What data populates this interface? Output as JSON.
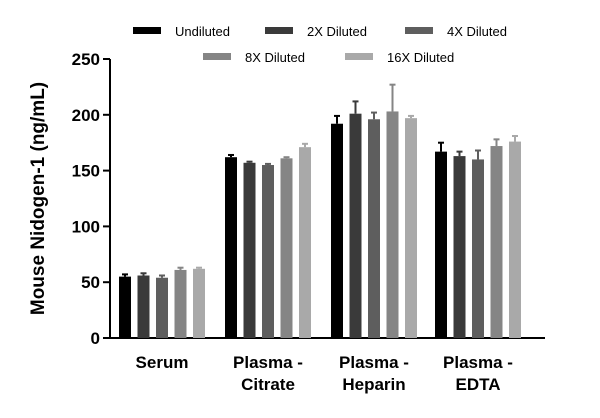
{
  "chart_data": {
    "type": "bar",
    "title": "",
    "xlabel": "",
    "ylabel": "Mouse Nidogen-1 (ng/mL)",
    "ylim": [
      0,
      250
    ],
    "yticks": [
      0,
      50,
      100,
      150,
      200,
      250
    ],
    "grid": false,
    "legend_position": "top",
    "categories": [
      [
        "Serum"
      ],
      [
        "Plasma -",
        "Citrate"
      ],
      [
        "Plasma -",
        "Heparin"
      ],
      [
        "Plasma -",
        "EDTA"
      ]
    ],
    "series": [
      {
        "name": "Undiluted",
        "color": "#000000",
        "values": [
          55,
          162,
          192,
          167
        ],
        "errors": [
          2,
          2,
          7,
          8
        ]
      },
      {
        "name": "2X Diluted",
        "color": "#3a3a3a",
        "values": [
          56,
          157,
          201,
          163
        ],
        "errors": [
          2,
          1,
          11,
          4
        ]
      },
      {
        "name": "4X Diluted",
        "color": "#5e5e5e",
        "values": [
          54,
          155,
          196,
          160
        ],
        "errors": [
          2,
          1,
          6,
          8
        ]
      },
      {
        "name": "8X Diluted",
        "color": "#858585",
        "values": [
          61,
          161,
          203,
          172
        ],
        "errors": [
          2,
          1,
          24,
          6
        ]
      },
      {
        "name": "16X Diluted",
        "color": "#a9a9a9",
        "values": [
          62,
          171,
          197,
          176
        ],
        "errors": [
          1,
          3,
          2,
          5
        ]
      }
    ]
  }
}
